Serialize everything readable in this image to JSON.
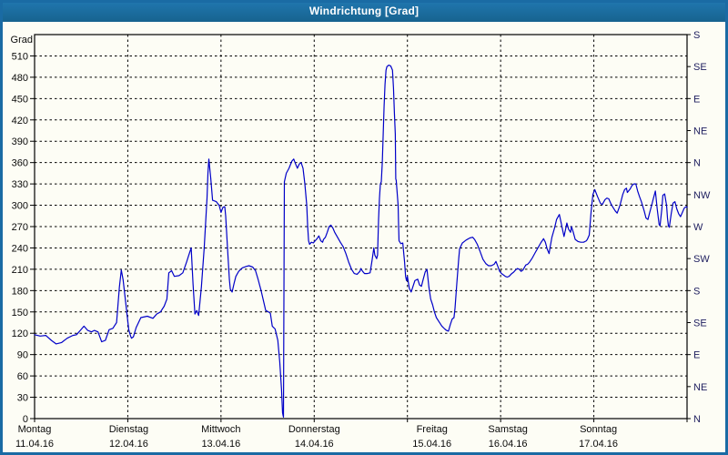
{
  "window": {
    "title": "Windrichtung [Grad]"
  },
  "colors": {
    "titlebar": "#1a6ba4",
    "frame": "#1a6ba4",
    "panel_background": "#fdfdf5",
    "line": "#0000c8",
    "grid": "#000000",
    "left_axis_text": "#0a0a0a",
    "right_axis_text": "#202060",
    "day_text": "#0a0a0a"
  },
  "chart_data": {
    "type": "line",
    "title": "Windrichtung [Grad]",
    "ylabel": "Grad",
    "xlabel": "",
    "grid": "dashed",
    "legend_position": "none",
    "ylim": [
      0,
      540
    ],
    "y_left_ticks": [
      0,
      30,
      60,
      90,
      120,
      150,
      180,
      210,
      240,
      270,
      300,
      330,
      360,
      390,
      420,
      450,
      480,
      510
    ],
    "y_right_ticks": [
      {
        "deg": 0,
        "label": "N"
      },
      {
        "deg": 45,
        "label": "NE"
      },
      {
        "deg": 90,
        "label": "E"
      },
      {
        "deg": 135,
        "label": "SE"
      },
      {
        "deg": 180,
        "label": "S"
      },
      {
        "deg": 225,
        "label": "SW"
      },
      {
        "deg": 270,
        "label": "W"
      },
      {
        "deg": 315,
        "label": "NW"
      },
      {
        "deg": 360,
        "label": "N"
      },
      {
        "deg": 405,
        "label": "NE"
      },
      {
        "deg": 450,
        "label": "E"
      },
      {
        "deg": 495,
        "label": "SE"
      },
      {
        "deg": 540,
        "label": "S"
      }
    ],
    "x_days": [
      {
        "name": "Montag",
        "date": "11.04.16"
      },
      {
        "name": "Dienstag",
        "date": "12.04.16"
      },
      {
        "name": "Mittwoch",
        "date": "13.04.16"
      },
      {
        "name": "Donnerstag",
        "date": "14.04.16"
      },
      {
        "name": "Freitag",
        "date": "15.04.16"
      },
      {
        "name": "Samstag",
        "date": "16.04.16"
      },
      {
        "name": "Sonntag",
        "date": "17.04.16"
      }
    ],
    "series": [
      {
        "name": "Windrichtung",
        "color": "#0000c8",
        "unit": "Grad",
        "points": [
          [
            0.0,
            118
          ],
          [
            0.06,
            116
          ],
          [
            0.12,
            117
          ],
          [
            0.18,
            110
          ],
          [
            0.23,
            105
          ],
          [
            0.29,
            107
          ],
          [
            0.35,
            113
          ],
          [
            0.41,
            117
          ],
          [
            0.45,
            118
          ],
          [
            0.49,
            124
          ],
          [
            0.53,
            130
          ],
          [
            0.57,
            124
          ],
          [
            0.61,
            122
          ],
          [
            0.64,
            124
          ],
          [
            0.68,
            122
          ],
          [
            0.72,
            108
          ],
          [
            0.76,
            110
          ],
          [
            0.8,
            125
          ],
          [
            0.84,
            127
          ],
          [
            0.88,
            135
          ],
          [
            0.91,
            185
          ],
          [
            0.93,
            209
          ],
          [
            0.95,
            195
          ],
          [
            0.98,
            160
          ],
          [
            1.01,
            125
          ],
          [
            1.03,
            116
          ],
          [
            1.04,
            113
          ],
          [
            1.06,
            115
          ],
          [
            1.09,
            128
          ],
          [
            1.14,
            142
          ],
          [
            1.21,
            144
          ],
          [
            1.27,
            141
          ],
          [
            1.31,
            147
          ],
          [
            1.35,
            150
          ],
          [
            1.39,
            158
          ],
          [
            1.42,
            168
          ],
          [
            1.44,
            205
          ],
          [
            1.47,
            208
          ],
          [
            1.5,
            200
          ],
          [
            1.55,
            201
          ],
          [
            1.59,
            205
          ],
          [
            1.63,
            220
          ],
          [
            1.66,
            232
          ],
          [
            1.68,
            240
          ],
          [
            1.7,
            190
          ],
          [
            1.72,
            147
          ],
          [
            1.74,
            152
          ],
          [
            1.76,
            145
          ],
          [
            1.79,
            185
          ],
          [
            1.82,
            240
          ],
          [
            1.85,
            310
          ],
          [
            1.86,
            345
          ],
          [
            1.87,
            365
          ],
          [
            1.89,
            338
          ],
          [
            1.91,
            307
          ],
          [
            1.95,
            305
          ],
          [
            1.98,
            300
          ],
          [
            2.0,
            290
          ],
          [
            2.02,
            297
          ],
          [
            2.04,
            298
          ],
          [
            2.05,
            285
          ],
          [
            2.07,
            240
          ],
          [
            2.09,
            195
          ],
          [
            2.1,
            182
          ],
          [
            2.12,
            178
          ],
          [
            2.14,
            190
          ],
          [
            2.16,
            200
          ],
          [
            2.19,
            207
          ],
          [
            2.23,
            212
          ],
          [
            2.27,
            214
          ],
          [
            2.3,
            215
          ],
          [
            2.34,
            213
          ],
          [
            2.37,
            208
          ],
          [
            2.4,
            195
          ],
          [
            2.43,
            180
          ],
          [
            2.46,
            163
          ],
          [
            2.48,
            152
          ],
          [
            2.51,
            150
          ],
          [
            2.53,
            148
          ],
          [
            2.55,
            130
          ],
          [
            2.58,
            126
          ],
          [
            2.61,
            110
          ],
          [
            2.63,
            80
          ],
          [
            2.65,
            40
          ],
          [
            2.66,
            8
          ],
          [
            2.67,
            2
          ],
          [
            2.675,
            170
          ],
          [
            2.68,
            333
          ],
          [
            2.7,
            345
          ],
          [
            2.73,
            352
          ],
          [
            2.76,
            362
          ],
          [
            2.78,
            365
          ],
          [
            2.8,
            358
          ],
          [
            2.82,
            352
          ],
          [
            2.84,
            358
          ],
          [
            2.86,
            360
          ],
          [
            2.88,
            352
          ],
          [
            2.9,
            330
          ],
          [
            2.92,
            300
          ],
          [
            2.93,
            270
          ],
          [
            2.94,
            250
          ],
          [
            2.95,
            245
          ],
          [
            2.97,
            248
          ],
          [
            2.99,
            247
          ],
          [
            3.01,
            250
          ],
          [
            3.03,
            253
          ],
          [
            3.05,
            257
          ],
          [
            3.07,
            250
          ],
          [
            3.09,
            248
          ],
          [
            3.1,
            252
          ],
          [
            3.12,
            255
          ],
          [
            3.14,
            262
          ],
          [
            3.16,
            270
          ],
          [
            3.18,
            272
          ],
          [
            3.2,
            268
          ],
          [
            3.22,
            262
          ],
          [
            3.25,
            255
          ],
          [
            3.28,
            248
          ],
          [
            3.31,
            242
          ],
          [
            3.34,
            232
          ],
          [
            3.37,
            220
          ],
          [
            3.4,
            210
          ],
          [
            3.43,
            204
          ],
          [
            3.46,
            203
          ],
          [
            3.49,
            207
          ],
          [
            3.5,
            211
          ],
          [
            3.52,
            207
          ],
          [
            3.54,
            204
          ],
          [
            3.57,
            204
          ],
          [
            3.6,
            205
          ],
          [
            3.62,
            222
          ],
          [
            3.64,
            240
          ],
          [
            3.65,
            230
          ],
          [
            3.67,
            225
          ],
          [
            3.68,
            230
          ],
          [
            3.69,
            280
          ],
          [
            3.7,
            310
          ],
          [
            3.71,
            330
          ],
          [
            3.72,
            333
          ],
          [
            3.73,
            360
          ],
          [
            3.74,
            400
          ],
          [
            3.75,
            440
          ],
          [
            3.76,
            470
          ],
          [
            3.77,
            490
          ],
          [
            3.78,
            495
          ],
          [
            3.8,
            497
          ],
          [
            3.82,
            496
          ],
          [
            3.84,
            490
          ],
          [
            3.85,
            465
          ],
          [
            3.86,
            430
          ],
          [
            3.87,
            400
          ],
          [
            3.875,
            337
          ],
          [
            3.88,
            335
          ],
          [
            3.9,
            300
          ],
          [
            3.905,
            272
          ],
          [
            3.91,
            250
          ],
          [
            3.93,
            246
          ],
          [
            3.95,
            247
          ],
          [
            3.97,
            220
          ],
          [
            3.98,
            200
          ],
          [
            3.99,
            194
          ],
          [
            4.0,
            200
          ],
          [
            4.02,
            183
          ],
          [
            4.04,
            178
          ],
          [
            4.06,
            186
          ],
          [
            4.08,
            194
          ],
          [
            4.11,
            196
          ],
          [
            4.13,
            188
          ],
          [
            4.15,
            186
          ],
          [
            4.17,
            196
          ],
          [
            4.19,
            206
          ],
          [
            4.21,
            210
          ],
          [
            4.23,
            185
          ],
          [
            4.25,
            168
          ],
          [
            4.27,
            160
          ],
          [
            4.29,
            150
          ],
          [
            4.31,
            142
          ],
          [
            4.34,
            136
          ],
          [
            4.37,
            130
          ],
          [
            4.4,
            126
          ],
          [
            4.42,
            124
          ],
          [
            4.44,
            123
          ],
          [
            4.46,
            132
          ],
          [
            4.48,
            140
          ],
          [
            4.5,
            142
          ],
          [
            4.51,
            155
          ],
          [
            4.53,
            190
          ],
          [
            4.55,
            225
          ],
          [
            4.56,
            239
          ],
          [
            4.59,
            247
          ],
          [
            4.63,
            251
          ],
          [
            4.67,
            254
          ],
          [
            4.7,
            255
          ],
          [
            4.72,
            252
          ],
          [
            4.75,
            245
          ],
          [
            4.78,
            235
          ],
          [
            4.81,
            224
          ],
          [
            4.84,
            218
          ],
          [
            4.87,
            215
          ],
          [
            4.9,
            215
          ],
          [
            4.93,
            217
          ],
          [
            4.95,
            221
          ],
          [
            4.97,
            214
          ],
          [
            4.99,
            207
          ],
          [
            5.01,
            204
          ],
          [
            5.03,
            202
          ],
          [
            5.05,
            200
          ],
          [
            5.07,
            199
          ],
          [
            5.09,
            200
          ],
          [
            5.12,
            204
          ],
          [
            5.14,
            206
          ],
          [
            5.16,
            209
          ],
          [
            5.18,
            211
          ],
          [
            5.2,
            210
          ],
          [
            5.22,
            207
          ],
          [
            5.24,
            209
          ],
          [
            5.27,
            216
          ],
          [
            5.29,
            217
          ],
          [
            5.31,
            220
          ],
          [
            5.34,
            226
          ],
          [
            5.37,
            233
          ],
          [
            5.4,
            240
          ],
          [
            5.43,
            247
          ],
          [
            5.46,
            253
          ],
          [
            5.48,
            248
          ],
          [
            5.5,
            238
          ],
          [
            5.52,
            232
          ],
          [
            5.53,
            240
          ],
          [
            5.55,
            255
          ],
          [
            5.58,
            269
          ],
          [
            5.6,
            280
          ],
          [
            5.63,
            287
          ],
          [
            5.65,
            275
          ],
          [
            5.67,
            262
          ],
          [
            5.68,
            256
          ],
          [
            5.7,
            268
          ],
          [
            5.71,
            275
          ],
          [
            5.73,
            266
          ],
          [
            5.75,
            262
          ],
          [
            5.76,
            270
          ],
          [
            5.78,
            262
          ],
          [
            5.8,
            252
          ],
          [
            5.83,
            249
          ],
          [
            5.86,
            248
          ],
          [
            5.89,
            248
          ],
          [
            5.92,
            250
          ],
          [
            5.93,
            252
          ],
          [
            5.95,
            258
          ],
          [
            5.97,
            290
          ],
          [
            5.99,
            315
          ],
          [
            6.01,
            322
          ],
          [
            6.04,
            312
          ],
          [
            6.07,
            303
          ],
          [
            6.09,
            301
          ],
          [
            6.12,
            308
          ],
          [
            6.14,
            310
          ],
          [
            6.16,
            309
          ],
          [
            6.18,
            303
          ],
          [
            6.2,
            298
          ],
          [
            6.23,
            292
          ],
          [
            6.25,
            289
          ],
          [
            6.28,
            300
          ],
          [
            6.31,
            315
          ],
          [
            6.33,
            322
          ],
          [
            6.35,
            324
          ],
          [
            6.36,
            318
          ],
          [
            6.39,
            323
          ],
          [
            6.41,
            328
          ],
          [
            6.43,
            330
          ],
          [
            6.45,
            330
          ],
          [
            6.47,
            320
          ],
          [
            6.49,
            312
          ],
          [
            6.51,
            305
          ],
          [
            6.54,
            292
          ],
          [
            6.56,
            282
          ],
          [
            6.58,
            280
          ],
          [
            6.6,
            290
          ],
          [
            6.62,
            300
          ],
          [
            6.64,
            310
          ],
          [
            6.66,
            320
          ],
          [
            6.68,
            295
          ],
          [
            6.7,
            273
          ],
          [
            6.71,
            271
          ],
          [
            6.73,
            295
          ],
          [
            6.74,
            314
          ],
          [
            6.76,
            316
          ],
          [
            6.78,
            300
          ],
          [
            6.79,
            282
          ],
          [
            6.8,
            271
          ],
          [
            6.81,
            269
          ],
          [
            6.83,
            288
          ],
          [
            6.85,
            303
          ],
          [
            6.87,
            305
          ],
          [
            6.89,
            295
          ],
          [
            6.91,
            288
          ],
          [
            6.93,
            284
          ],
          [
            6.95,
            290
          ],
          [
            6.97,
            296
          ],
          [
            6.99,
            298
          ],
          [
            7.0,
            297
          ]
        ]
      }
    ]
  }
}
